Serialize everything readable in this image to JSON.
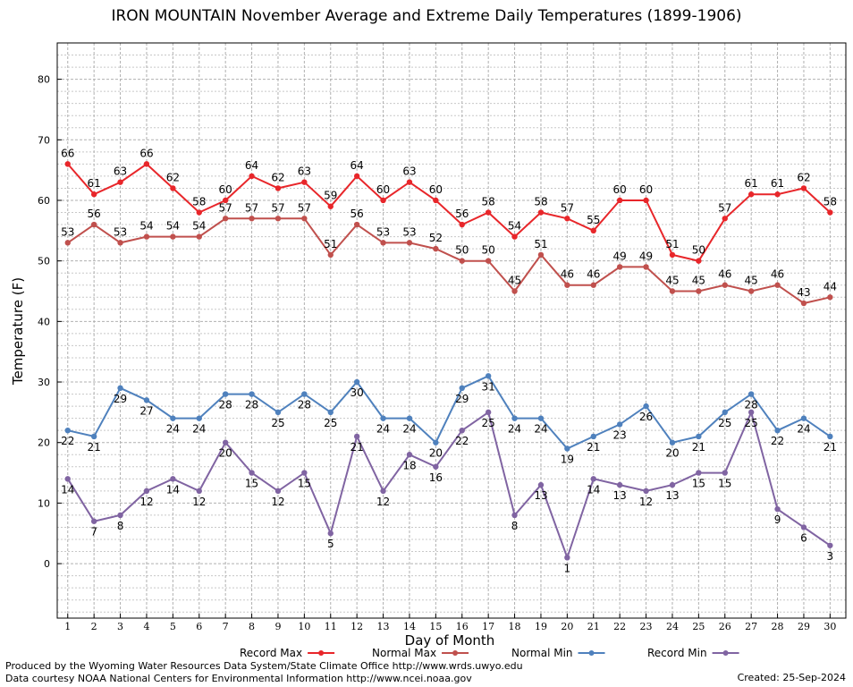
{
  "chart_data": {
    "type": "line",
    "title": "IRON MOUNTAIN November Average and Extreme Daily Temperatures (1899-1906)",
    "xlabel": "Day of Month",
    "ylabel": "Temperature (F)",
    "xlim": [
      0.6,
      30.6
    ],
    "ylim": [
      -9,
      86
    ],
    "yticks": [
      0,
      10,
      20,
      30,
      40,
      50,
      60,
      70,
      80
    ],
    "grid": true,
    "x": [
      1,
      2,
      3,
      4,
      5,
      6,
      7,
      8,
      9,
      10,
      11,
      12,
      13,
      14,
      15,
      16,
      17,
      18,
      19,
      20,
      21,
      22,
      23,
      24,
      25,
      26,
      27,
      28,
      29,
      30
    ],
    "series": [
      {
        "name": "Record Max",
        "color": "#e8262a",
        "label_pos": "above",
        "values": [
          66,
          61,
          63,
          66,
          62,
          58,
          60,
          64,
          62,
          63,
          59,
          64,
          60,
          63,
          60,
          56,
          58,
          54,
          58,
          57,
          55,
          60,
          60,
          51,
          50,
          57,
          61,
          61,
          62,
          58
        ]
      },
      {
        "name": "Normal Max",
        "color": "#c0504d",
        "label_pos": "above",
        "values": [
          53,
          56,
          53,
          54,
          54,
          54,
          57,
          57,
          57,
          57,
          51,
          56,
          53,
          53,
          52,
          50,
          50,
          45,
          51,
          46,
          46,
          49,
          49,
          45,
          45,
          46,
          45,
          46,
          43,
          44
        ]
      },
      {
        "name": "Normal Min",
        "color": "#4f81bd",
        "label_pos": "below",
        "values": [
          22,
          21,
          29,
          27,
          24,
          24,
          28,
          28,
          25,
          28,
          25,
          30,
          24,
          24,
          20,
          29,
          31,
          24,
          24,
          19,
          21,
          23,
          26,
          20,
          21,
          25,
          28,
          22,
          24,
          21
        ]
      },
      {
        "name": "Record Min",
        "color": "#8064a2",
        "label_pos": "below",
        "values": [
          14,
          7,
          8,
          12,
          14,
          12,
          20,
          15,
          12,
          15,
          5,
          21,
          12,
          18,
          16,
          22,
          25,
          8,
          13,
          1,
          14,
          13,
          12,
          13,
          15,
          15,
          25,
          9,
          6,
          3
        ]
      }
    ],
    "legend": "bottom"
  },
  "footer": {
    "line1": "Produced by the Wyoming Water Resources Data System/State Climate Office http://www.wrds.uwyo.edu",
    "line2": "Data courtesy NOAA National Centers for Environmental Information http://www.ncei.noaa.gov",
    "created": "Created:  25-Sep-2024"
  }
}
